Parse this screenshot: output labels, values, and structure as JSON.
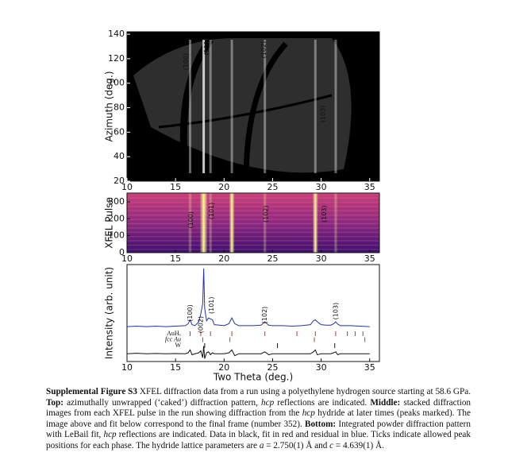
{
  "chart_data": [
    {
      "type": "image",
      "ylabel": "Azimuth (deg.)",
      "xlim": [
        10,
        36
      ],
      "xticks": [
        10,
        15,
        20,
        25,
        30,
        35
      ],
      "ylim": [
        20,
        142
      ],
      "yticks": [
        20,
        40,
        60,
        80,
        100,
        120,
        140
      ],
      "annotations": [
        "(100)",
        "(101)",
        "(102)",
        "(103)"
      ]
    },
    {
      "type": "heatmap",
      "ylabel": "XFEL Pulse",
      "xlim": [
        10,
        36
      ],
      "xticks": [
        10,
        15,
        20,
        25,
        30,
        35
      ],
      "ylim": [
        0,
        352
      ],
      "yticks": [
        0,
        100,
        200,
        300
      ],
      "annotations": [
        "(100)",
        "(101)",
        "(102)",
        "(103)"
      ]
    },
    {
      "type": "line",
      "ylabel": "Intensity (arb. unit)",
      "xlabel": "Two Theta (deg.)",
      "xlim": [
        10,
        36
      ],
      "xticks": [
        10,
        15,
        20,
        25,
        30,
        35
      ],
      "ylim": [
        0,
        100
      ],
      "x": [
        10,
        11,
        12,
        13,
        14,
        15,
        16,
        16.3,
        16.5,
        16.7,
        17,
        17.4,
        17.6,
        17.8,
        17.9,
        18.0,
        18.2,
        18.4,
        18.6,
        18.8,
        19,
        19.5,
        20,
        20.5,
        20.8,
        21.1,
        21.5,
        22,
        23,
        23.8,
        24.2,
        24.6,
        25,
        26,
        27,
        28,
        28.9,
        29.2,
        29.4,
        29.6,
        30,
        30.5,
        31,
        31.3,
        31.5,
        31.7,
        32,
        33,
        34,
        35
      ],
      "series": [
        {
          "color": "#2233aa",
          "values": [
            36,
            36.5,
            36,
            36.5,
            36,
            36.5,
            37,
            39,
            43,
            38,
            37,
            41,
            49,
            60,
            96,
            55,
            42,
            45,
            44,
            43,
            38,
            37.5,
            37,
            39,
            45,
            39,
            37,
            37,
            37,
            37.5,
            41,
            37.5,
            37,
            37,
            36.5,
            37,
            38,
            42,
            43,
            41,
            38,
            37.5,
            37.5,
            39,
            41,
            38.5,
            37,
            37,
            36.5,
            36
          ]
        },
        {
          "color": "#111111",
          "values": [
            8,
            8.5,
            8,
            8.3,
            8,
            8.2,
            8,
            9,
            12,
            7,
            8,
            9,
            11,
            4,
            16,
            3,
            9,
            10,
            7,
            9,
            8,
            8,
            8,
            9,
            12,
            6,
            8,
            8,
            8,
            8,
            10,
            7,
            8,
            8,
            8,
            8,
            8,
            10,
            12,
            7,
            8,
            8,
            8,
            9,
            10,
            7,
            8,
            8,
            8,
            8
          ]
        }
      ],
      "annotations": [
        "(100)",
        "(002)",
        "(101)",
        "(102)",
        "(103)"
      ],
      "phases": [
        {
          "name": "AuHₓ",
          "color": "#c0392b",
          "positions": [
            16.5,
            17.6,
            18.6,
            20.8,
            24.2,
            27.5,
            29.4,
            31.5,
            32.7,
            33.5,
            34.3
          ]
        },
        {
          "name": "fcc Au",
          "color": "#8a5a2b",
          "positions": [
            17.8,
            20.6,
            29.3,
            34.5
          ]
        },
        {
          "name": "W",
          "color": "#111111",
          "positions": [
            18.0,
            25.5,
            31.4
          ]
        }
      ]
    }
  ],
  "caption": [
    "Supplemental Figure S3",
    " XFEL diffraction data from a run using a polyethylene hydrogen source starting at 58.6 GPa. ",
    "Top:",
    " azimuthally unwrapped (‘caked’) diffraction pattern, ",
    "hcp",
    " reflections are indicated. ",
    "Middle:",
    " stacked diffraction images from each XFEL pulse in the run showing diffraction from the ",
    "hcp",
    " hydride at later times (peaks marked). The image above and fit below correspond to the final frame (number 352). ",
    "Bottom:",
    " Integrated powder diffraction pattern with LeBail fit, ",
    "hcp",
    " reflections are indicated. Data in black, fit in red and residual in blue. Ticks indicate allowed peak positions for each phase. The hydride lattice parameters are ",
    "a",
    " = 2.750(1) Å and ",
    "c",
    " = 4.639(1) Å."
  ]
}
